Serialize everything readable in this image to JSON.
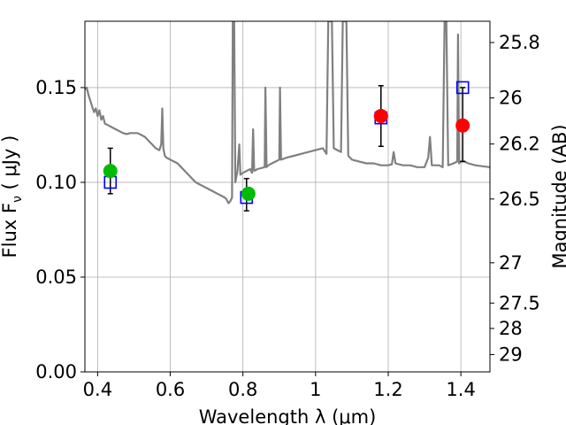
{
  "chart_data": {
    "type": "scatter",
    "xlabel": "Wavelength  λ (μm)",
    "ylabel": "Flux  F",
    "ylabel_sub": "ν",
    "ylabel_unit": " ( μJy )",
    "y2label": "Magnitude (AB)",
    "xlim": [
      0.365,
      1.48
    ],
    "ylim": [
      0.0,
      0.185
    ],
    "grid": true,
    "x_ticks": [
      {
        "value": 0.4,
        "label": "0.4"
      },
      {
        "value": 0.6,
        "label": "0.6"
      },
      {
        "value": 0.8,
        "label": "0.8"
      },
      {
        "value": 1.0,
        "label": "1"
      },
      {
        "value": 1.2,
        "label": "1.2"
      },
      {
        "value": 1.4,
        "label": "1.4"
      }
    ],
    "y_ticks": [
      {
        "value": 0.0,
        "label": "0.00"
      },
      {
        "value": 0.05,
        "label": "0.05"
      },
      {
        "value": 0.1,
        "label": "0.10"
      },
      {
        "value": 0.15,
        "label": "0.15"
      }
    ],
    "y2_ticks": [
      {
        "value": 25.8,
        "label": "25.8"
      },
      {
        "value": 26.0,
        "label": "26"
      },
      {
        "value": 26.2,
        "label": "26.2"
      },
      {
        "value": 26.5,
        "label": "26.5"
      },
      {
        "value": 27.0,
        "label": "27"
      },
      {
        "value": 27.5,
        "label": "27.5"
      },
      {
        "value": 28.0,
        "label": "28"
      },
      {
        "value": 29.0,
        "label": "29"
      }
    ],
    "model_spectrum": {
      "color": "#808080",
      "points": [
        [
          0.365,
          0.149
        ],
        [
          0.37,
          0.15
        ],
        [
          0.375,
          0.146
        ],
        [
          0.38,
          0.143
        ],
        [
          0.385,
          0.14
        ],
        [
          0.39,
          0.137
        ],
        [
          0.395,
          0.139
        ],
        [
          0.4,
          0.135
        ],
        [
          0.405,
          0.138
        ],
        [
          0.41,
          0.133
        ],
        [
          0.415,
          0.135
        ],
        [
          0.42,
          0.131
        ],
        [
          0.43,
          0.13
        ],
        [
          0.44,
          0.129
        ],
        [
          0.45,
          0.128
        ],
        [
          0.46,
          0.127
        ],
        [
          0.47,
          0.126
        ],
        [
          0.48,
          0.1255
        ],
        [
          0.49,
          0.126
        ],
        [
          0.5,
          0.126
        ],
        [
          0.51,
          0.126
        ],
        [
          0.52,
          0.125
        ],
        [
          0.53,
          0.124
        ],
        [
          0.54,
          0.122
        ],
        [
          0.55,
          0.12
        ],
        [
          0.56,
          0.118
        ],
        [
          0.57,
          0.117
        ],
        [
          0.575,
          0.12
        ],
        [
          0.578,
          0.139
        ],
        [
          0.581,
          0.118
        ],
        [
          0.585,
          0.114
        ],
        [
          0.59,
          0.113
        ],
        [
          0.6,
          0.112
        ],
        [
          0.61,
          0.111
        ],
        [
          0.62,
          0.11
        ],
        [
          0.63,
          0.108
        ],
        [
          0.64,
          0.106
        ],
        [
          0.65,
          0.104
        ],
        [
          0.66,
          0.102
        ],
        [
          0.67,
          0.1
        ],
        [
          0.68,
          0.099
        ],
        [
          0.69,
          0.098
        ],
        [
          0.7,
          0.097
        ],
        [
          0.71,
          0.096
        ],
        [
          0.72,
          0.095
        ],
        [
          0.73,
          0.094
        ],
        [
          0.74,
          0.093
        ],
        [
          0.75,
          0.092
        ],
        [
          0.755,
          0.091
        ],
        [
          0.76,
          0.089
        ],
        [
          0.765,
          0.09
        ],
        [
          0.77,
          0.092
        ],
        [
          0.772,
          0.185
        ],
        [
          0.776,
          0.185
        ],
        [
          0.779,
          0.1
        ],
        [
          0.785,
          0.106
        ],
        [
          0.79,
          0.12
        ],
        [
          0.793,
          0.104
        ],
        [
          0.8,
          0.105
        ],
        [
          0.81,
          0.106
        ],
        [
          0.82,
          0.107
        ],
        [
          0.825,
          0.105
        ],
        [
          0.828,
          0.128
        ],
        [
          0.831,
          0.106
        ],
        [
          0.84,
          0.107
        ],
        [
          0.86,
          0.108
        ],
        [
          0.862,
          0.15
        ],
        [
          0.865,
          0.108
        ],
        [
          0.87,
          0.109
        ],
        [
          0.88,
          0.11
        ],
        [
          0.89,
          0.111
        ],
        [
          0.9,
          0.112
        ],
        [
          0.902,
          0.15
        ],
        [
          0.905,
          0.112
        ],
        [
          0.92,
          0.113
        ],
        [
          0.94,
          0.114
        ],
        [
          0.96,
          0.115
        ],
        [
          0.98,
          0.116
        ],
        [
          1.0,
          0.117
        ],
        [
          1.02,
          0.118
        ],
        [
          1.03,
          0.115
        ],
        [
          1.035,
          0.185
        ],
        [
          1.045,
          0.185
        ],
        [
          1.05,
          0.118
        ],
        [
          1.06,
          0.117
        ],
        [
          1.07,
          0.116
        ],
        [
          1.075,
          0.185
        ],
        [
          1.085,
          0.185
        ],
        [
          1.09,
          0.114
        ],
        [
          1.1,
          0.112
        ],
        [
          1.12,
          0.111
        ],
        [
          1.14,
          0.11
        ],
        [
          1.16,
          0.11
        ],
        [
          1.18,
          0.109
        ],
        [
          1.2,
          0.109
        ],
        [
          1.21,
          0.1095
        ],
        [
          1.215,
          0.116
        ],
        [
          1.22,
          0.11
        ],
        [
          1.24,
          0.109
        ],
        [
          1.26,
          0.109
        ],
        [
          1.28,
          0.108
        ],
        [
          1.3,
          0.108
        ],
        [
          1.31,
          0.113
        ],
        [
          1.315,
          0.124
        ],
        [
          1.32,
          0.109
        ],
        [
          1.34,
          0.109
        ],
        [
          1.35,
          0.108
        ],
        [
          1.355,
          0.185
        ],
        [
          1.36,
          0.185
        ],
        [
          1.365,
          0.109
        ],
        [
          1.38,
          0.11
        ],
        [
          1.39,
          0.111
        ],
        [
          1.392,
          0.178
        ],
        [
          1.395,
          0.11
        ],
        [
          1.4,
          0.111
        ],
        [
          1.41,
          0.111
        ],
        [
          1.42,
          0.11
        ],
        [
          1.44,
          0.109
        ],
        [
          1.46,
          0.1085
        ],
        [
          1.48,
          0.108
        ]
      ]
    },
    "series": [
      {
        "marker": "square",
        "color": "#0000ff",
        "points": [
          [
            0.435,
            0.1
          ],
          [
            0.81,
            0.092
          ],
          [
            1.18,
            0.134
          ],
          [
            1.405,
            0.15
          ]
        ]
      },
      {
        "marker": "circle",
        "color": "#00bb00",
        "points": [
          [
            0.435,
            0.106
          ],
          [
            0.815,
            0.094
          ]
        ]
      },
      {
        "marker": "circle",
        "color": "#ff0000",
        "points": [
          [
            1.18,
            0.135
          ],
          [
            1.405,
            0.13
          ]
        ]
      }
    ],
    "errorbars": [
      {
        "x": 0.435,
        "low": 0.094,
        "high": 0.118
      },
      {
        "x": 0.81,
        "low": 0.085,
        "high": 0.102
      },
      {
        "x": 1.18,
        "low": 0.119,
        "high": 0.151
      },
      {
        "x": 1.405,
        "low": 0.111,
        "high": 0.15
      }
    ]
  }
}
